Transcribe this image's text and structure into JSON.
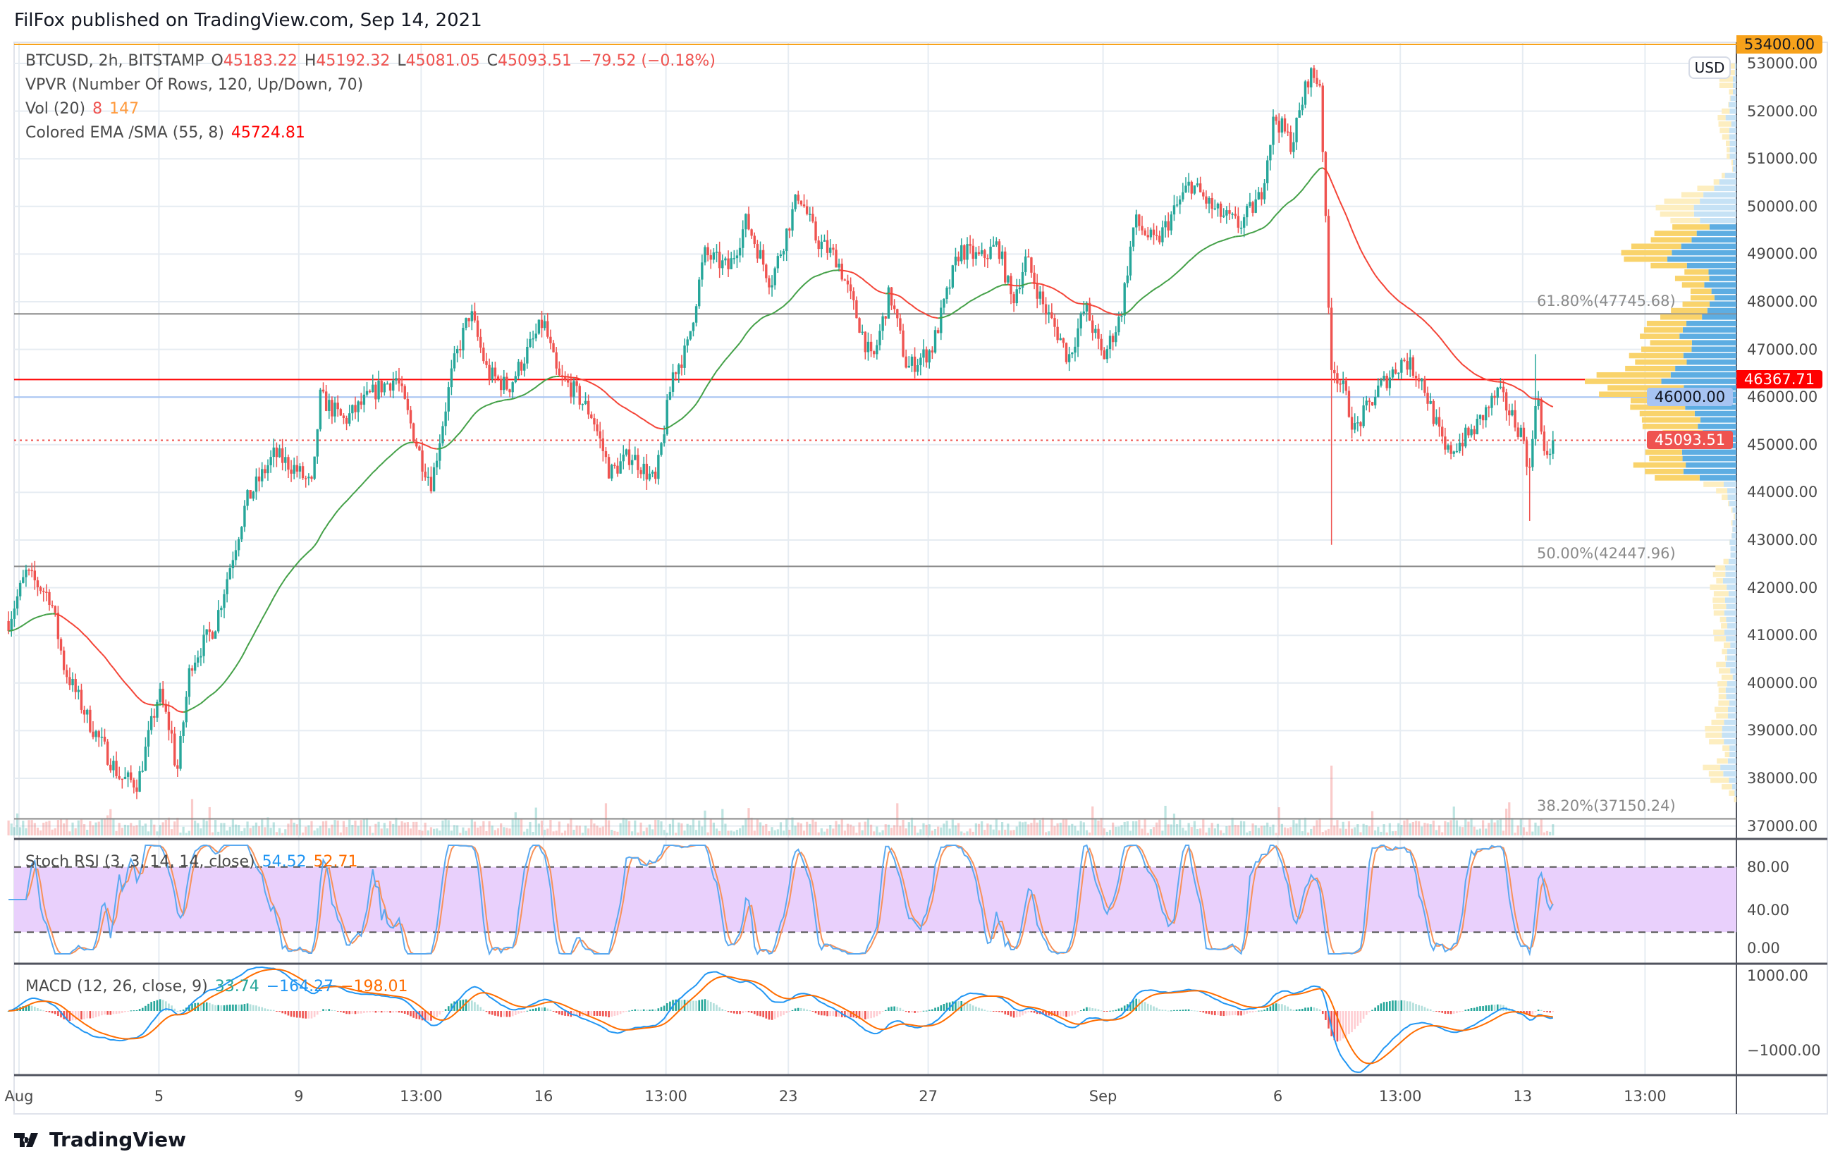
{
  "header": {
    "published": "FilFox published on TradingView.com, Sep 14, 2021"
  },
  "legend": {
    "symbol": "BTCUSD, 2h, BITSTAMP",
    "o_label": "O",
    "open": "45183.22",
    "h_label": "H",
    "high": "45192.32",
    "l_label": "L",
    "low": "45081.05",
    "c_label": "C",
    "close": "45093.51",
    "change": "−79.52 (−0.18%)",
    "vpvr": "VPVR (Number Of Rows, 120, Up/Down, 70)",
    "vol": "Vol (20)",
    "vol_v1": "8",
    "vol_v2": "147",
    "ema": "Colored EMA /SMA (55, 8)",
    "ema_value": "45724.81",
    "stoch": "Stoch RSI (3, 3, 14, 14, close)",
    "stoch_k": "54.52",
    "stoch_d": "52.71",
    "macd": "MACD (12, 26, close, 9)",
    "macd_hist": "33.74",
    "macd_line": "−164.27",
    "macd_signal": "−198.01"
  },
  "price_axis": {
    "currency": "USD",
    "ticks": [
      "53000.00",
      "52000.00",
      "51000.00",
      "50000.00",
      "49000.00",
      "48000.00",
      "47000.00",
      "46000.00",
      "45000.00",
      "44000.00",
      "43000.00",
      "42000.00",
      "41000.00",
      "40000.00",
      "39000.00",
      "38000.00",
      "37000.00"
    ],
    "badges": [
      {
        "label": "53400.00",
        "value": 53400,
        "color": "#f7a21b",
        "text": "#131722"
      },
      {
        "label": "46367.71",
        "value": 46367.71,
        "color": "#ff0000",
        "text": "#ffffff"
      },
      {
        "label": "46000.00",
        "value": 46000,
        "color": "#a7c4f2",
        "text": "#131722"
      },
      {
        "label": "45093.51",
        "value": 45093.51,
        "color": "#ef5350",
        "text": "#ffffff"
      }
    ],
    "stoch_ticks": [
      "80.00",
      "40.00",
      "0.00"
    ],
    "macd_ticks": [
      "1000.00",
      "−1000.00"
    ]
  },
  "fib_levels": [
    {
      "label": "61.80%(47745.68)",
      "value": 47745.68
    },
    {
      "label": "50.00%(42447.96)",
      "value": 42447.96
    },
    {
      "label": "38.20%(37150.24)",
      "value": 37150.24
    }
  ],
  "time_axis": [
    {
      "label": "Aug",
      "day": 0
    },
    {
      "label": "5",
      "day": 4
    },
    {
      "label": "9",
      "day": 8
    },
    {
      "label": "13:00",
      "day": 11.5
    },
    {
      "label": "16",
      "day": 15
    },
    {
      "label": "13:00",
      "day": 18.5
    },
    {
      "label": "23",
      "day": 22
    },
    {
      "label": "27",
      "day": 26
    },
    {
      "label": "Sep",
      "day": 31
    },
    {
      "label": "6",
      "day": 36
    },
    {
      "label": "13:00",
      "day": 39.5
    },
    {
      "label": "13",
      "day": 43
    },
    {
      "label": "13:00",
      "day": 46.5
    }
  ],
  "footer": {
    "brand": "TradingView"
  },
  "colors": {
    "up": "#26a69a",
    "down": "#ef5350",
    "ema_up": "#43a047",
    "ema_down": "#f44336",
    "stoch_k": "#5aa9f0",
    "stoch_d": "#f7925a",
    "macd": "#2196f3",
    "signal": "#ff6d00"
  },
  "chart_data": {
    "type": "candlestick",
    "symbol": "BTCUSD",
    "interval": "2h",
    "ylim": [
      36800,
      53500
    ],
    "x_unit": "days since Aug 1, 2021",
    "close_path": [
      [
        -0.3,
        41300
      ],
      [
        0.2,
        42300
      ],
      [
        0.9,
        41800
      ],
      [
        1.3,
        40300
      ],
      [
        2.0,
        39200
      ],
      [
        2.9,
        38000
      ],
      [
        3.4,
        37900
      ],
      [
        4.0,
        39800
      ],
      [
        4.4,
        38800
      ],
      [
        4.5,
        38000
      ],
      [
        4.9,
        40400
      ],
      [
        5.6,
        41200
      ],
      [
        6.5,
        43800
      ],
      [
        7.3,
        44800
      ],
      [
        7.9,
        44500
      ],
      [
        8.4,
        44100
      ],
      [
        8.6,
        46000
      ],
      [
        9.3,
        45500
      ],
      [
        10.3,
        46200
      ],
      [
        10.8,
        46400
      ],
      [
        11.5,
        44700
      ],
      [
        11.8,
        44200
      ],
      [
        12.4,
        46600
      ],
      [
        12.9,
        47800
      ],
      [
        13.4,
        46500
      ],
      [
        14.0,
        46200
      ],
      [
        15.0,
        47600
      ],
      [
        15.4,
        46400
      ],
      [
        15.8,
        46200
      ],
      [
        16.4,
        45600
      ],
      [
        16.9,
        44400
      ],
      [
        17.5,
        44800
      ],
      [
        18.2,
        44200
      ],
      [
        18.7,
        46500
      ],
      [
        19.1,
        47000
      ],
      [
        19.6,
        49000
      ],
      [
        20.3,
        48700
      ],
      [
        20.8,
        49700
      ],
      [
        21.5,
        48400
      ],
      [
        22.3,
        50300
      ],
      [
        22.8,
        49300
      ],
      [
        23.4,
        48900
      ],
      [
        24.0,
        47600
      ],
      [
        24.4,
        46700
      ],
      [
        24.9,
        48200
      ],
      [
        25.4,
        46600
      ],
      [
        26.1,
        47000
      ],
      [
        26.9,
        49100
      ],
      [
        27.5,
        48900
      ],
      [
        28.0,
        49200
      ],
      [
        28.4,
        48000
      ],
      [
        28.8,
        48900
      ],
      [
        29.3,
        47900
      ],
      [
        29.8,
        47200
      ],
      [
        30.0,
        46800
      ],
      [
        30.5,
        47900
      ],
      [
        31.0,
        46800
      ],
      [
        31.5,
        47700
      ],
      [
        31.9,
        49700
      ],
      [
        32.5,
        49200
      ],
      [
        33.5,
        50500
      ],
      [
        34.2,
        49900
      ],
      [
        34.9,
        49600
      ],
      [
        35.5,
        50200
      ],
      [
        35.9,
        51900
      ],
      [
        36.4,
        51300
      ],
      [
        36.9,
        52800
      ],
      [
        37.2,
        52600
      ],
      [
        37.3,
        51000
      ],
      [
        37.5,
        46800
      ],
      [
        37.9,
        46100
      ],
      [
        38.2,
        45300
      ],
      [
        38.9,
        46200
      ],
      [
        39.6,
        46800
      ],
      [
        40.1,
        46400
      ],
      [
        40.8,
        44800
      ],
      [
        41.6,
        45300
      ],
      [
        42.3,
        46100
      ],
      [
        43.0,
        45200
      ],
      [
        43.2,
        44400
      ],
      [
        43.4,
        46300
      ],
      [
        43.6,
        44700
      ],
      [
        43.9,
        45093.51
      ]
    ],
    "notable_wicks": [
      {
        "day": 37.5,
        "low": 42900
      },
      {
        "day": 43.2,
        "low": 43400
      },
      {
        "day": 43.4,
        "high": 46900
      }
    ],
    "horizontal_lines": [
      {
        "value": 53400,
        "color": "#f7a21b"
      },
      {
        "value": 47745.68,
        "color": "#8a8a8a"
      },
      {
        "value": 46367.71,
        "color": "#ff0000"
      },
      {
        "value": 46000,
        "color": "#a7c4f2"
      },
      {
        "value": 42447.96,
        "color": "#8a8a8a"
      },
      {
        "value": 37150.24,
        "color": "#8a8a8a"
      }
    ],
    "last_price": 45093.51,
    "stoch_levels": [
      20,
      80
    ],
    "macd_range": [
      -1250,
      1200
    ]
  }
}
